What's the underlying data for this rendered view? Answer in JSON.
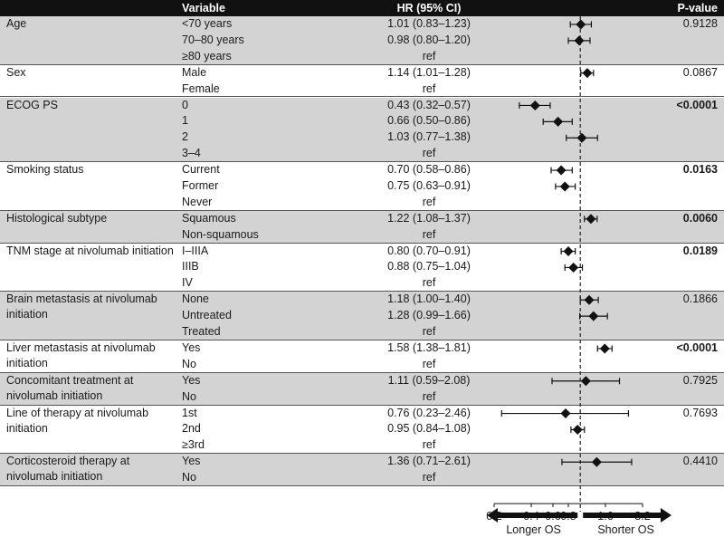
{
  "header": {
    "variable": "Variable",
    "hr": "HR (95% CI)",
    "pvalue": "P-value"
  },
  "bands": [
    {
      "variable": "Age",
      "pvalue": "0.9128",
      "bold": false,
      "shaded": true,
      "levels": [
        {
          "label": "<70 years",
          "hr_text": "1.01 (0.83–1.23)"
        },
        {
          "label": "70–80 years",
          "hr_text": "0.98 (0.80–1.20)"
        },
        {
          "label": "≥80 years",
          "hr_text": "ref"
        }
      ]
    },
    {
      "variable": "Sex",
      "pvalue": "0.0867",
      "bold": false,
      "shaded": false,
      "levels": [
        {
          "label": "Male",
          "hr_text": "1.14 (1.01–1.28)"
        },
        {
          "label": "Female",
          "hr_text": "ref"
        }
      ]
    },
    {
      "variable": "ECOG PS",
      "pvalue": "<0.0001",
      "bold": true,
      "shaded": true,
      "levels": [
        {
          "label": "0",
          "hr_text": "0.43 (0.32–0.57)"
        },
        {
          "label": "1",
          "hr_text": "0.66 (0.50–0.86)"
        },
        {
          "label": "2",
          "hr_text": "1.03 (0.77–1.38)"
        },
        {
          "label": "3–4",
          "hr_text": "ref"
        }
      ]
    },
    {
      "variable": "Smoking status",
      "pvalue": "0.0163",
      "bold": true,
      "shaded": false,
      "levels": [
        {
          "label": "Current",
          "hr_text": "0.70 (0.58–0.86)"
        },
        {
          "label": "Former",
          "hr_text": "0.75 (0.63–0.91)"
        },
        {
          "label": "Never",
          "hr_text": "ref"
        }
      ]
    },
    {
      "variable": "Histological subtype",
      "pvalue": "0.0060",
      "bold": true,
      "shaded": true,
      "levels": [
        {
          "label": "Squamous",
          "hr_text": "1.22 (1.08–1.37)"
        },
        {
          "label": "Non-squamous",
          "hr_text": "ref"
        }
      ]
    },
    {
      "variable": "TNM stage at nivolumab initiation",
      "pvalue": "0.0189",
      "bold": true,
      "shaded": false,
      "levels": [
        {
          "label": "I–IIIA",
          "hr_text": "0.80 (0.70–0.91)"
        },
        {
          "label": "IIIB",
          "hr_text": "0.88 (0.75–1.04)"
        },
        {
          "label": "IV",
          "hr_text": "ref"
        }
      ]
    },
    {
      "variable": "Brain metastasis at nivolumab initiation",
      "pvalue": "0.1866",
      "bold": false,
      "shaded": true,
      "levels": [
        {
          "label": "None",
          "hr_text": "1.18 (1.00–1.40)"
        },
        {
          "label": "Untreated",
          "hr_text": "1.28 (0.99–1.66)"
        },
        {
          "label": "Treated",
          "hr_text": "ref"
        }
      ]
    },
    {
      "variable": "Liver metastasis at nivolumab initiation",
      "pvalue": "<0.0001",
      "bold": true,
      "shaded": false,
      "levels": [
        {
          "label": "Yes",
          "hr_text": "1.58 (1.38–1.81)"
        },
        {
          "label": "No",
          "hr_text": "ref"
        }
      ]
    },
    {
      "variable": "Concomitant treatment at nivolumab initiation",
      "pvalue": "0.7925",
      "bold": false,
      "shaded": true,
      "levels": [
        {
          "label": "Yes",
          "hr_text": "1.11 (0.59–2.08)"
        },
        {
          "label": "No",
          "hr_text": "ref"
        }
      ]
    },
    {
      "variable": "Line of therapy at nivolumab initiation",
      "pvalue": "0.7693",
      "bold": false,
      "shaded": false,
      "levels": [
        {
          "label": "1st",
          "hr_text": "0.76 (0.23–2.46)"
        },
        {
          "label": "2nd",
          "hr_text": "0.95 (0.84–1.08)"
        },
        {
          "label": "≥3rd",
          "hr_text": "ref"
        }
      ]
    },
    {
      "variable": "Corticosteroid therapy at nivolumab initiation",
      "pvalue": "0.4410",
      "bold": false,
      "shaded": true,
      "levels": [
        {
          "label": "Yes",
          "hr_text": "1.36 (0.71–2.61)"
        },
        {
          "label": "No",
          "hr_text": "ref"
        }
      ]
    }
  ],
  "chart_data": {
    "type": "scatter",
    "subtype": "forest",
    "xscale": "log",
    "x_ticks": [
      0.2,
      0.4,
      0.6,
      0.8,
      1.6,
      3.2
    ],
    "x_tick_labels": [
      "0.2",
      "0.4",
      "0.6",
      "0.8",
      "1.6",
      "3.2"
    ],
    "reference_line": 1.0,
    "xlim": [
      0.2,
      3.2
    ],
    "arrows": {
      "left": "Longer OS",
      "right": "Shorter OS"
    },
    "points": [
      {
        "group": "Age",
        "level": "<70 years",
        "hr": 1.01,
        "lo": 0.83,
        "hi": 1.23
      },
      {
        "group": "Age",
        "level": "70–80 years",
        "hr": 0.98,
        "lo": 0.8,
        "hi": 1.2
      },
      {
        "group": "Sex",
        "level": "Male",
        "hr": 1.14,
        "lo": 1.01,
        "hi": 1.28
      },
      {
        "group": "ECOG PS",
        "level": "0",
        "hr": 0.43,
        "lo": 0.32,
        "hi": 0.57
      },
      {
        "group": "ECOG PS",
        "level": "1",
        "hr": 0.66,
        "lo": 0.5,
        "hi": 0.86
      },
      {
        "group": "ECOG PS",
        "level": "2",
        "hr": 1.03,
        "lo": 0.77,
        "hi": 1.38
      },
      {
        "group": "Smoking status",
        "level": "Current",
        "hr": 0.7,
        "lo": 0.58,
        "hi": 0.86
      },
      {
        "group": "Smoking status",
        "level": "Former",
        "hr": 0.75,
        "lo": 0.63,
        "hi": 0.91
      },
      {
        "group": "Histological subtype",
        "level": "Squamous",
        "hr": 1.22,
        "lo": 1.08,
        "hi": 1.37
      },
      {
        "group": "TNM stage at nivolumab initiation",
        "level": "I–IIIA",
        "hr": 0.8,
        "lo": 0.7,
        "hi": 0.91
      },
      {
        "group": "TNM stage at nivolumab initiation",
        "level": "IIIB",
        "hr": 0.88,
        "lo": 0.75,
        "hi": 1.04
      },
      {
        "group": "Brain metastasis at nivolumab initiation",
        "level": "None",
        "hr": 1.18,
        "lo": 1.0,
        "hi": 1.4
      },
      {
        "group": "Brain metastasis at nivolumab initiation",
        "level": "Untreated",
        "hr": 1.28,
        "lo": 0.99,
        "hi": 1.66
      },
      {
        "group": "Liver metastasis at nivolumab initiation",
        "level": "Yes",
        "hr": 1.58,
        "lo": 1.38,
        "hi": 1.81
      },
      {
        "group": "Concomitant treatment at nivolumab initiation",
        "level": "Yes",
        "hr": 1.11,
        "lo": 0.59,
        "hi": 2.08
      },
      {
        "group": "Line of therapy at nivolumab initiation",
        "level": "1st",
        "hr": 0.76,
        "lo": 0.23,
        "hi": 2.46
      },
      {
        "group": "Line of therapy at nivolumab initiation",
        "level": "2nd",
        "hr": 0.95,
        "lo": 0.84,
        "hi": 1.08
      },
      {
        "group": "Corticosteroid therapy at nivolumab initiation",
        "level": "Yes",
        "hr": 1.36,
        "lo": 0.71,
        "hi": 2.61
      }
    ]
  },
  "colors": {
    "band": "#d3d3d3",
    "header": "#111111",
    "marker": "#111111"
  }
}
